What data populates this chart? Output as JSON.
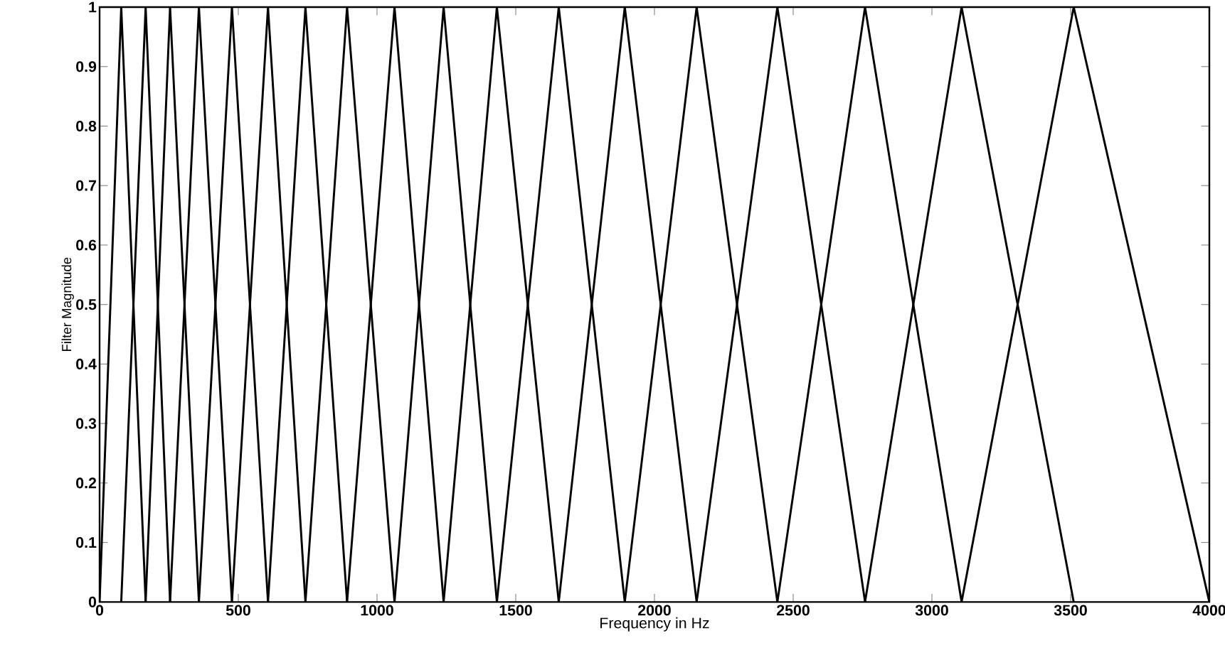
{
  "chart_data": {
    "type": "line",
    "xlabel": "Frequency in Hz",
    "ylabel": "Filter Magnitude",
    "xlim": [
      0,
      4000
    ],
    "xticks": [
      0,
      500,
      1000,
      1500,
      2000,
      2500,
      3000,
      3500,
      4000
    ],
    "ylim": [
      0,
      1
    ],
    "yticks": [
      0,
      0.1,
      0.2,
      0.3,
      0.4,
      0.5,
      0.6,
      0.7,
      0.8,
      0.9,
      1
    ],
    "grid": false,
    "marker": "none",
    "line_style": "solid",
    "series": [
      {
        "color": "#000000",
        "x": [
          0,
          78,
          166
        ],
        "values": [
          0,
          1,
          0
        ]
      },
      {
        "color": "#000000",
        "x": [
          78,
          166,
          254
        ],
        "values": [
          0,
          1,
          0
        ]
      },
      {
        "color": "#000000",
        "x": [
          166,
          254,
          358
        ],
        "values": [
          0,
          1,
          0
        ]
      },
      {
        "color": "#000000",
        "x": [
          254,
          358,
          477
        ],
        "values": [
          0,
          1,
          0
        ]
      },
      {
        "color": "#000000",
        "x": [
          358,
          477,
          607
        ],
        "values": [
          0,
          1,
          0
        ]
      },
      {
        "color": "#000000",
        "x": [
          477,
          607,
          742
        ],
        "values": [
          0,
          1,
          0
        ]
      },
      {
        "color": "#000000",
        "x": [
          607,
          742,
          892
        ],
        "values": [
          0,
          1,
          0
        ]
      },
      {
        "color": "#000000",
        "x": [
          742,
          892,
          1063
        ],
        "values": [
          0,
          1,
          0
        ]
      },
      {
        "color": "#000000",
        "x": [
          892,
          1063,
          1240
        ],
        "values": [
          0,
          1,
          0
        ]
      },
      {
        "color": "#000000",
        "x": [
          1063,
          1240,
          1432
        ],
        "values": [
          0,
          1,
          0
        ]
      },
      {
        "color": "#000000",
        "x": [
          1240,
          1432,
          1655
        ],
        "values": [
          0,
          1,
          0
        ]
      },
      {
        "color": "#000000",
        "x": [
          1432,
          1655,
          1893
        ],
        "values": [
          0,
          1,
          0
        ]
      },
      {
        "color": "#000000",
        "x": [
          1655,
          1893,
          2152
        ],
        "values": [
          0,
          1,
          0
        ]
      },
      {
        "color": "#000000",
        "x": [
          1893,
          2152,
          2443
        ],
        "values": [
          0,
          1,
          0
        ]
      },
      {
        "color": "#000000",
        "x": [
          2152,
          2443,
          2759
        ],
        "values": [
          0,
          1,
          0
        ]
      },
      {
        "color": "#000000",
        "x": [
          2443,
          2759,
          3107
        ],
        "values": [
          0,
          1,
          0
        ]
      },
      {
        "color": "#000000",
        "x": [
          2759,
          3107,
          3511
        ],
        "values": [
          0,
          1,
          0
        ]
      },
      {
        "color": "#000000",
        "x": [
          3107,
          3511,
          4000
        ],
        "values": [
          0,
          1,
          0
        ]
      }
    ]
  }
}
